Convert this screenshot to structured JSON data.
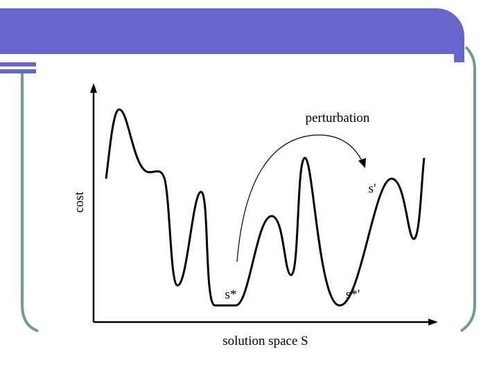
{
  "diagram": {
    "y_axis_label": "cost",
    "x_axis_label": "solution space S",
    "annotations": {
      "arrow": "perturbation",
      "local_min": "s*",
      "perturbed": "s'",
      "new_min": "s*'"
    }
  }
}
